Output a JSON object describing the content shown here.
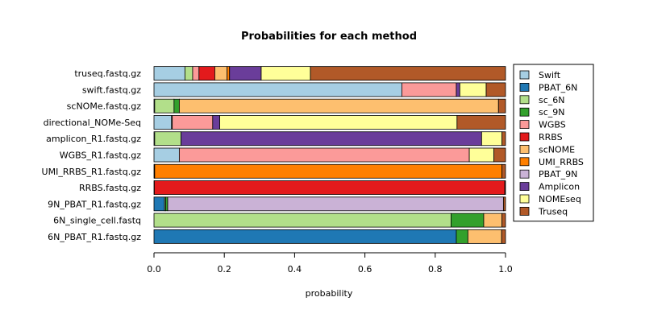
{
  "chart_data": {
    "type": "bar",
    "orientation": "horizontal",
    "stacked": true,
    "title": "Probabilities for each method",
    "xlabel": "probability",
    "ylabel": "",
    "xlim": [
      0,
      1
    ],
    "xticks": [
      "0.0",
      "0.2",
      "0.4",
      "0.6",
      "0.8",
      "1.0"
    ],
    "legend_position": "right",
    "grid": false,
    "categories": [
      "truseq.fastq.gz",
      "swift.fastq.gz",
      "scNOMe.fastq.gz",
      "directional_NOMe-Seq",
      "amplicon_R1.fastq.gz",
      "WGBS_R1.fastq.gz",
      "UMI_RRBS_R1.fastq.gz",
      "RRBS.fastq.gz",
      "9N_PBAT_R1.fastq.gz",
      "6N_single_cell.fastq",
      "6N_PBAT_R1.fastq.gz"
    ],
    "series": [
      {
        "name": "Swift",
        "color": "#a6cee3",
        "values": [
          0.088,
          0.705,
          0.002,
          0.05,
          0.002,
          0.072,
          0.001,
          0.001,
          0.0,
          0.0,
          0.0
        ]
      },
      {
        "name": "PBAT_6N",
        "color": "#1f78b4",
        "values": [
          0.0,
          0.0,
          0.0,
          0.0,
          0.0,
          0.0,
          0.0,
          0.0,
          0.03,
          0.0,
          0.86
        ]
      },
      {
        "name": "sc_6N",
        "color": "#b2df8a",
        "values": [
          0.022,
          0.0,
          0.055,
          0.002,
          0.075,
          0.0,
          0.0,
          0.0,
          0.003,
          0.845,
          0.0
        ]
      },
      {
        "name": "sc_9N",
        "color": "#33a02c",
        "values": [
          0.0,
          0.0,
          0.015,
          0.0,
          0.0,
          0.0,
          0.0,
          0.0,
          0.006,
          0.093,
          0.033
        ]
      },
      {
        "name": "WGBS",
        "color": "#fb9a99",
        "values": [
          0.018,
          0.155,
          0.0,
          0.115,
          0.0,
          0.825,
          0.0,
          0.0,
          0.0,
          0.0,
          0.0
        ]
      },
      {
        "name": "RRBS",
        "color": "#e31a1c",
        "values": [
          0.045,
          0.0,
          0.0,
          0.0,
          0.0,
          0.0,
          0.001,
          0.997,
          0.0,
          0.0,
          0.0
        ]
      },
      {
        "name": "scNOME",
        "color": "#fdbf6f",
        "values": [
          0.035,
          0.0,
          0.908,
          0.0,
          0.0,
          0.0,
          0.0,
          0.0,
          0.0,
          0.052,
          0.096
        ]
      },
      {
        "name": "UMI_RRBS",
        "color": "#ff7f00",
        "values": [
          0.007,
          0.0,
          0.0,
          0.0,
          0.0,
          0.0,
          0.988,
          0.0,
          0.0,
          0.0,
          0.0
        ]
      },
      {
        "name": "PBAT_9N",
        "color": "#cab2d6",
        "values": [
          0.0,
          0.0,
          0.0,
          0.0,
          0.0,
          0.0,
          0.0,
          0.0,
          0.955,
          0.0,
          0.0
        ]
      },
      {
        "name": "Amplicon",
        "color": "#6a3d9a",
        "values": [
          0.09,
          0.01,
          0.0,
          0.02,
          0.855,
          0.0,
          0.0,
          0.0,
          0.0,
          0.0,
          0.0
        ]
      },
      {
        "name": "NOMEseq",
        "color": "#ffff99",
        "values": [
          0.14,
          0.075,
          0.0,
          0.675,
          0.058,
          0.07,
          0.0,
          0.0,
          0.0,
          0.0,
          0.0
        ]
      },
      {
        "name": "Truseq",
        "color": "#b15928",
        "values": [
          0.555,
          0.055,
          0.02,
          0.138,
          0.01,
          0.033,
          0.01,
          0.002,
          0.006,
          0.01,
          0.011
        ]
      }
    ]
  }
}
